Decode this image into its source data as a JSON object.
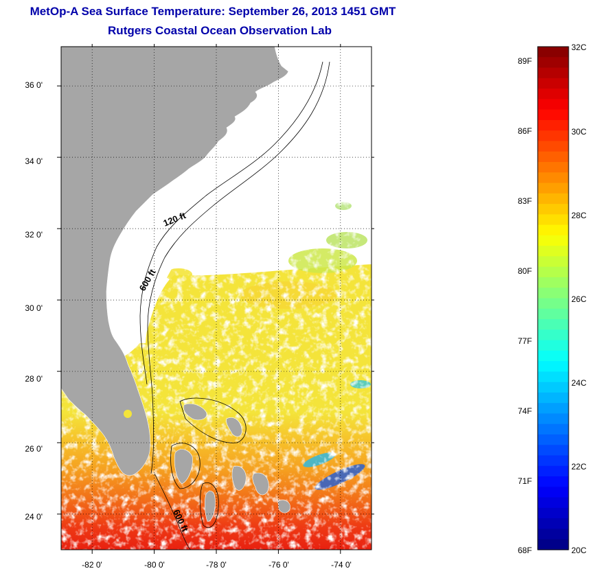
{
  "title": "MetOp-A Sea Surface Temperature:  September 26, 2013 1451 GMT",
  "subtitle": "Rutgers Coastal Ocean Observation Lab",
  "axes": {
    "x_ticks": [
      "-82 0'",
      "-80 0'",
      "-78 0'",
      "-76 0'",
      "-74 0'"
    ],
    "y_ticks": [
      "36 0'",
      "34 0'",
      "32 0'",
      "30 0'",
      "28 0'",
      "26 0'",
      "24 0'"
    ],
    "lon_range": [
      -83.0,
      -73.0
    ],
    "lat_range": [
      23.0,
      37.1
    ],
    "grid": "dotted"
  },
  "contour_labels": {
    "c120": "120 ft",
    "c600a": "600 ft",
    "c600b": "600 ft"
  },
  "colorbar": {
    "min_c": 20,
    "max_c": 32,
    "celsius_labels": [
      "32C",
      "30C",
      "28C",
      "26C",
      "24C",
      "22C",
      "20C"
    ],
    "fahrenheit_labels": [
      "89F",
      "86F",
      "83F",
      "80F",
      "77F",
      "74F",
      "71F",
      "68F"
    ]
  },
  "colors": {
    "land": "#a6a6a6",
    "title": "#0000aa",
    "cloud_mask": "#ffffff"
  }
}
